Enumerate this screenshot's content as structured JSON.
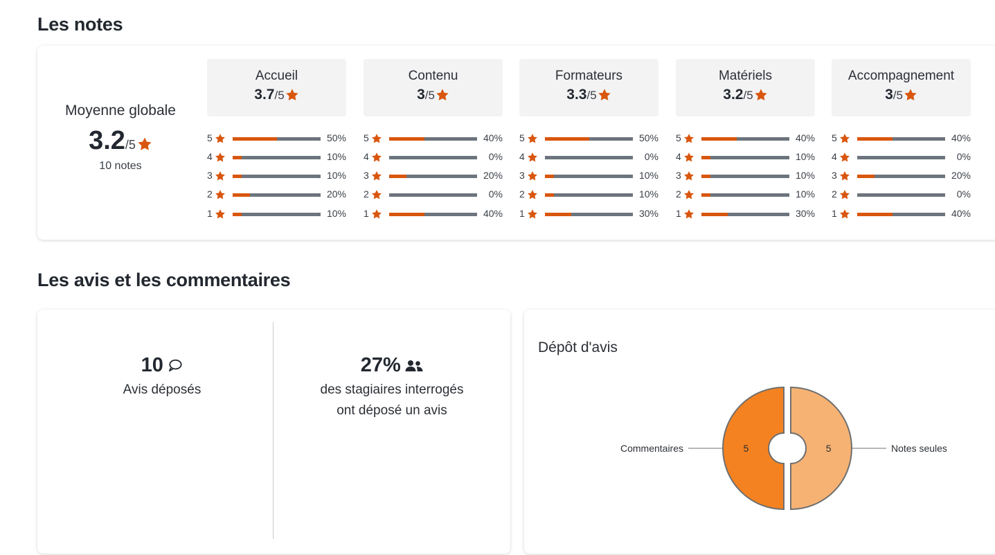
{
  "colors": {
    "accent": "#d9560e",
    "track": "#6c757d",
    "header_bg": "#f3f3f4"
  },
  "notes": {
    "title": "Les notes",
    "global": {
      "label": "Moyenne globale",
      "value": "3.2",
      "max": "/5",
      "count": "10 notes"
    },
    "categories": [
      {
        "name": "Accueil",
        "value": "3.7",
        "max": "/5",
        "rows": [
          {
            "stars": "5",
            "pct": "50%",
            "fraction": 0.5
          },
          {
            "stars": "4",
            "pct": "10%",
            "fraction": 0.1
          },
          {
            "stars": "3",
            "pct": "10%",
            "fraction": 0.1
          },
          {
            "stars": "2",
            "pct": "20%",
            "fraction": 0.2
          },
          {
            "stars": "1",
            "pct": "10%",
            "fraction": 0.1
          }
        ]
      },
      {
        "name": "Contenu",
        "value": "3",
        "max": "/5",
        "rows": [
          {
            "stars": "5",
            "pct": "40%",
            "fraction": 0.4
          },
          {
            "stars": "4",
            "pct": "0%",
            "fraction": 0
          },
          {
            "stars": "3",
            "pct": "20%",
            "fraction": 0.2
          },
          {
            "stars": "2",
            "pct": "0%",
            "fraction": 0
          },
          {
            "stars": "1",
            "pct": "40%",
            "fraction": 0.4
          }
        ]
      },
      {
        "name": "Formateurs",
        "value": "3.3",
        "max": "/5",
        "rows": [
          {
            "stars": "5",
            "pct": "50%",
            "fraction": 0.5
          },
          {
            "stars": "4",
            "pct": "0%",
            "fraction": 0
          },
          {
            "stars": "3",
            "pct": "10%",
            "fraction": 0.1
          },
          {
            "stars": "2",
            "pct": "10%",
            "fraction": 0.1
          },
          {
            "stars": "1",
            "pct": "30%",
            "fraction": 0.3
          }
        ]
      },
      {
        "name": "Matériels",
        "value": "3.2",
        "max": "/5",
        "rows": [
          {
            "stars": "5",
            "pct": "40%",
            "fraction": 0.4
          },
          {
            "stars": "4",
            "pct": "10%",
            "fraction": 0.1
          },
          {
            "stars": "3",
            "pct": "10%",
            "fraction": 0.1
          },
          {
            "stars": "2",
            "pct": "10%",
            "fraction": 0.1
          },
          {
            "stars": "1",
            "pct": "30%",
            "fraction": 0.3
          }
        ]
      },
      {
        "name": "Accompagnement",
        "value": "3",
        "max": "/5",
        "rows": [
          {
            "stars": "5",
            "pct": "40%",
            "fraction": 0.4
          },
          {
            "stars": "4",
            "pct": "0%",
            "fraction": 0
          },
          {
            "stars": "3",
            "pct": "20%",
            "fraction": 0.2
          },
          {
            "stars": "2",
            "pct": "0%",
            "fraction": 0
          },
          {
            "stars": "1",
            "pct": "40%",
            "fraction": 0.4
          }
        ]
      }
    ]
  },
  "avis": {
    "title": "Les avis et les commentaires",
    "count_value": "10",
    "count_label": "Avis déposés",
    "count_icon": "comment-icon",
    "rate_value": "27%",
    "rate_icon": "users-icon",
    "rate_label_line1": "des stagiaires interrogés",
    "rate_label_line2": "ont déposé un avis"
  },
  "depot": {
    "title": "Dépôt d'avis",
    "chart_data": {
      "type": "pie",
      "categories": [
        "Notes seules",
        "Commentaires"
      ],
      "values": [
        5,
        5
      ],
      "colors": [
        "#f6b273",
        "#f58220"
      ],
      "data_labels": [
        "5",
        "5"
      ]
    }
  }
}
